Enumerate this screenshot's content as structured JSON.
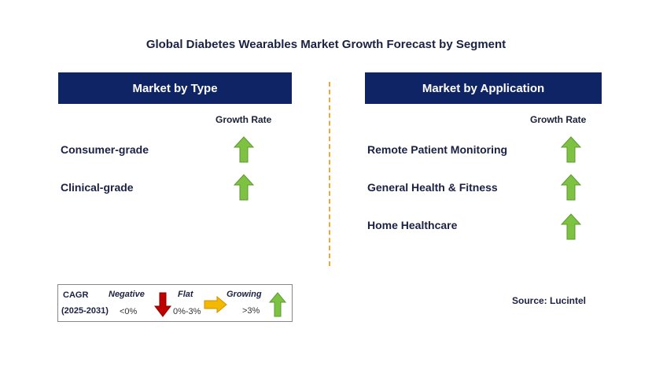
{
  "title": "Global Diabetes Wearables Market Growth Forecast by Segment",
  "left_panel": {
    "header": "Market by Type",
    "growth_label": "Growth Rate",
    "items": [
      {
        "label": "Consumer-grade",
        "trend": "growing"
      },
      {
        "label": "Clinical-grade",
        "trend": "growing"
      }
    ]
  },
  "right_panel": {
    "header": "Market by Application",
    "growth_label": "Growth Rate",
    "items": [
      {
        "label": "Remote Patient Monitoring",
        "trend": "growing"
      },
      {
        "label": "General Health & Fitness",
        "trend": "growing"
      },
      {
        "label": "Home Healthcare",
        "trend": "growing"
      }
    ]
  },
  "legend": {
    "cagr_label": "CAGR",
    "period": "(2025-2031)",
    "negative_label": "Negative",
    "negative_value": "<0%",
    "flat_label": "Flat",
    "flat_value": "0%-3%",
    "growing_label": "Growing",
    "growing_value": ">3%"
  },
  "source": "Source: Lucintel",
  "colors": {
    "header_bg": "#0f2464",
    "up_arrow": "#7dc242",
    "down_arrow": "#c00000",
    "flat_arrow": "#f5b800",
    "divider": "#f0a830"
  }
}
